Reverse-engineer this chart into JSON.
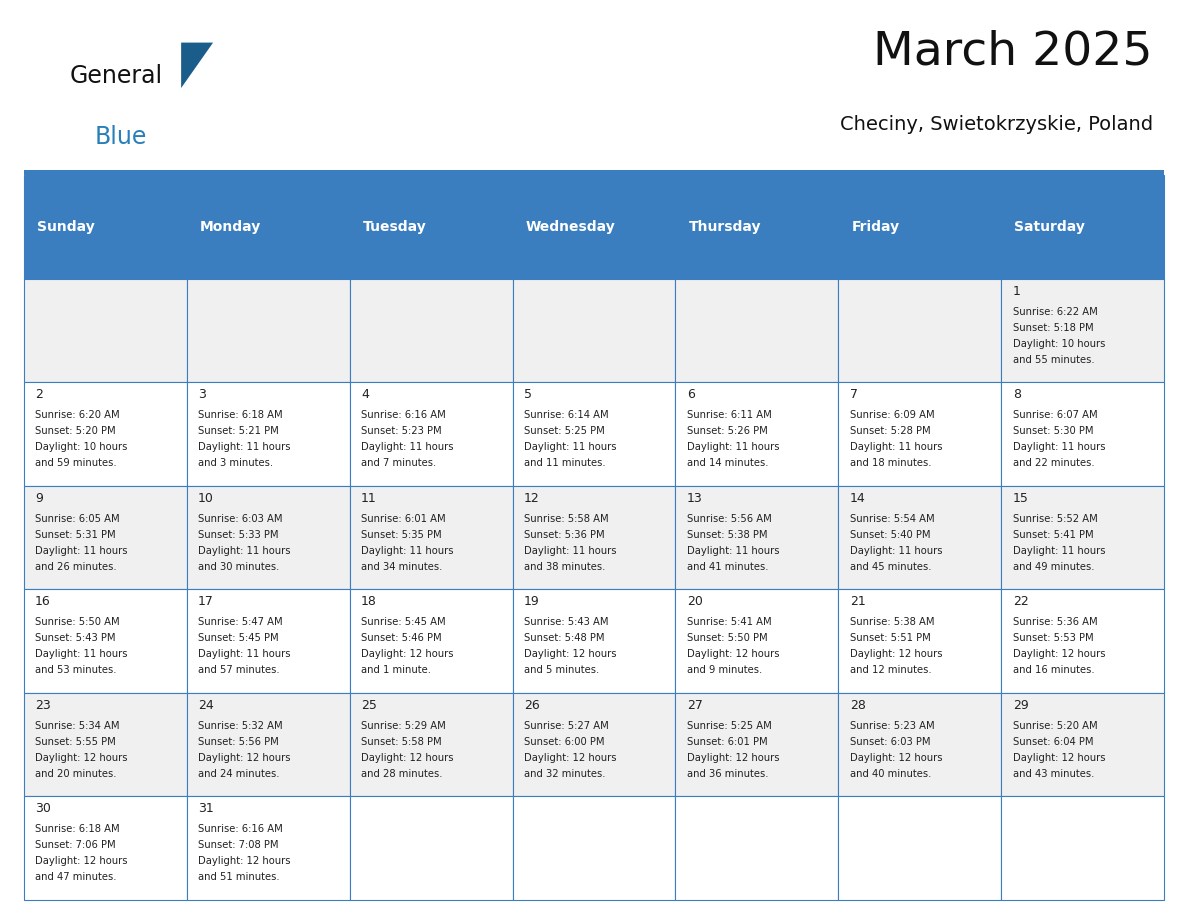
{
  "title": "March 2025",
  "subtitle": "Checiny, Swietokrzyskie, Poland",
  "days_of_week": [
    "Sunday",
    "Monday",
    "Tuesday",
    "Wednesday",
    "Thursday",
    "Friday",
    "Saturday"
  ],
  "header_bg": "#3a7ebf",
  "header_text": "#ffffff",
  "cell_bg_light": "#f0f0f0",
  "cell_bg_white": "#ffffff",
  "cell_text": "#222222",
  "border_color": "#3a7ebf",
  "title_color": "#111111",
  "subtitle_color": "#111111",
  "logo_general_color": "#111111",
  "logo_blue_color": "#2980b9",
  "logo_triangle_color": "#1a5c8a",
  "n_weeks": 6,
  "n_cols": 7,
  "calendar_data": [
    {
      "day": 1,
      "week": 0,
      "dow": 6,
      "sunrise": "6:22 AM",
      "sunset": "5:18 PM",
      "daylight_line1": "Daylight: 10 hours",
      "daylight_line2": "and 55 minutes."
    },
    {
      "day": 2,
      "week": 1,
      "dow": 0,
      "sunrise": "6:20 AM",
      "sunset": "5:20 PM",
      "daylight_line1": "Daylight: 10 hours",
      "daylight_line2": "and 59 minutes."
    },
    {
      "day": 3,
      "week": 1,
      "dow": 1,
      "sunrise": "6:18 AM",
      "sunset": "5:21 PM",
      "daylight_line1": "Daylight: 11 hours",
      "daylight_line2": "and 3 minutes."
    },
    {
      "day": 4,
      "week": 1,
      "dow": 2,
      "sunrise": "6:16 AM",
      "sunset": "5:23 PM",
      "daylight_line1": "Daylight: 11 hours",
      "daylight_line2": "and 7 minutes."
    },
    {
      "day": 5,
      "week": 1,
      "dow": 3,
      "sunrise": "6:14 AM",
      "sunset": "5:25 PM",
      "daylight_line1": "Daylight: 11 hours",
      "daylight_line2": "and 11 minutes."
    },
    {
      "day": 6,
      "week": 1,
      "dow": 4,
      "sunrise": "6:11 AM",
      "sunset": "5:26 PM",
      "daylight_line1": "Daylight: 11 hours",
      "daylight_line2": "and 14 minutes."
    },
    {
      "day": 7,
      "week": 1,
      "dow": 5,
      "sunrise": "6:09 AM",
      "sunset": "5:28 PM",
      "daylight_line1": "Daylight: 11 hours",
      "daylight_line2": "and 18 minutes."
    },
    {
      "day": 8,
      "week": 1,
      "dow": 6,
      "sunrise": "6:07 AM",
      "sunset": "5:30 PM",
      "daylight_line1": "Daylight: 11 hours",
      "daylight_line2": "and 22 minutes."
    },
    {
      "day": 9,
      "week": 2,
      "dow": 0,
      "sunrise": "6:05 AM",
      "sunset": "5:31 PM",
      "daylight_line1": "Daylight: 11 hours",
      "daylight_line2": "and 26 minutes."
    },
    {
      "day": 10,
      "week": 2,
      "dow": 1,
      "sunrise": "6:03 AM",
      "sunset": "5:33 PM",
      "daylight_line1": "Daylight: 11 hours",
      "daylight_line2": "and 30 minutes."
    },
    {
      "day": 11,
      "week": 2,
      "dow": 2,
      "sunrise": "6:01 AM",
      "sunset": "5:35 PM",
      "daylight_line1": "Daylight: 11 hours",
      "daylight_line2": "and 34 minutes."
    },
    {
      "day": 12,
      "week": 2,
      "dow": 3,
      "sunrise": "5:58 AM",
      "sunset": "5:36 PM",
      "daylight_line1": "Daylight: 11 hours",
      "daylight_line2": "and 38 minutes."
    },
    {
      "day": 13,
      "week": 2,
      "dow": 4,
      "sunrise": "5:56 AM",
      "sunset": "5:38 PM",
      "daylight_line1": "Daylight: 11 hours",
      "daylight_line2": "and 41 minutes."
    },
    {
      "day": 14,
      "week": 2,
      "dow": 5,
      "sunrise": "5:54 AM",
      "sunset": "5:40 PM",
      "daylight_line1": "Daylight: 11 hours",
      "daylight_line2": "and 45 minutes."
    },
    {
      "day": 15,
      "week": 2,
      "dow": 6,
      "sunrise": "5:52 AM",
      "sunset": "5:41 PM",
      "daylight_line1": "Daylight: 11 hours",
      "daylight_line2": "and 49 minutes."
    },
    {
      "day": 16,
      "week": 3,
      "dow": 0,
      "sunrise": "5:50 AM",
      "sunset": "5:43 PM",
      "daylight_line1": "Daylight: 11 hours",
      "daylight_line2": "and 53 minutes."
    },
    {
      "day": 17,
      "week": 3,
      "dow": 1,
      "sunrise": "5:47 AM",
      "sunset": "5:45 PM",
      "daylight_line1": "Daylight: 11 hours",
      "daylight_line2": "and 57 minutes."
    },
    {
      "day": 18,
      "week": 3,
      "dow": 2,
      "sunrise": "5:45 AM",
      "sunset": "5:46 PM",
      "daylight_line1": "Daylight: 12 hours",
      "daylight_line2": "and 1 minute."
    },
    {
      "day": 19,
      "week": 3,
      "dow": 3,
      "sunrise": "5:43 AM",
      "sunset": "5:48 PM",
      "daylight_line1": "Daylight: 12 hours",
      "daylight_line2": "and 5 minutes."
    },
    {
      "day": 20,
      "week": 3,
      "dow": 4,
      "sunrise": "5:41 AM",
      "sunset": "5:50 PM",
      "daylight_line1": "Daylight: 12 hours",
      "daylight_line2": "and 9 minutes."
    },
    {
      "day": 21,
      "week": 3,
      "dow": 5,
      "sunrise": "5:38 AM",
      "sunset": "5:51 PM",
      "daylight_line1": "Daylight: 12 hours",
      "daylight_line2": "and 12 minutes."
    },
    {
      "day": 22,
      "week": 3,
      "dow": 6,
      "sunrise": "5:36 AM",
      "sunset": "5:53 PM",
      "daylight_line1": "Daylight: 12 hours",
      "daylight_line2": "and 16 minutes."
    },
    {
      "day": 23,
      "week": 4,
      "dow": 0,
      "sunrise": "5:34 AM",
      "sunset": "5:55 PM",
      "daylight_line1": "Daylight: 12 hours",
      "daylight_line2": "and 20 minutes."
    },
    {
      "day": 24,
      "week": 4,
      "dow": 1,
      "sunrise": "5:32 AM",
      "sunset": "5:56 PM",
      "daylight_line1": "Daylight: 12 hours",
      "daylight_line2": "and 24 minutes."
    },
    {
      "day": 25,
      "week": 4,
      "dow": 2,
      "sunrise": "5:29 AM",
      "sunset": "5:58 PM",
      "daylight_line1": "Daylight: 12 hours",
      "daylight_line2": "and 28 minutes."
    },
    {
      "day": 26,
      "week": 4,
      "dow": 3,
      "sunrise": "5:27 AM",
      "sunset": "6:00 PM",
      "daylight_line1": "Daylight: 12 hours",
      "daylight_line2": "and 32 minutes."
    },
    {
      "day": 27,
      "week": 4,
      "dow": 4,
      "sunrise": "5:25 AM",
      "sunset": "6:01 PM",
      "daylight_line1": "Daylight: 12 hours",
      "daylight_line2": "and 36 minutes."
    },
    {
      "day": 28,
      "week": 4,
      "dow": 5,
      "sunrise": "5:23 AM",
      "sunset": "6:03 PM",
      "daylight_line1": "Daylight: 12 hours",
      "daylight_line2": "and 40 minutes."
    },
    {
      "day": 29,
      "week": 4,
      "dow": 6,
      "sunrise": "5:20 AM",
      "sunset": "6:04 PM",
      "daylight_line1": "Daylight: 12 hours",
      "daylight_line2": "and 43 minutes."
    },
    {
      "day": 30,
      "week": 5,
      "dow": 0,
      "sunrise": "6:18 AM",
      "sunset": "7:06 PM",
      "daylight_line1": "Daylight: 12 hours",
      "daylight_line2": "and 47 minutes."
    },
    {
      "day": 31,
      "week": 5,
      "dow": 1,
      "sunrise": "6:16 AM",
      "sunset": "7:08 PM",
      "daylight_line1": "Daylight: 12 hours",
      "daylight_line2": "and 51 minutes."
    }
  ]
}
